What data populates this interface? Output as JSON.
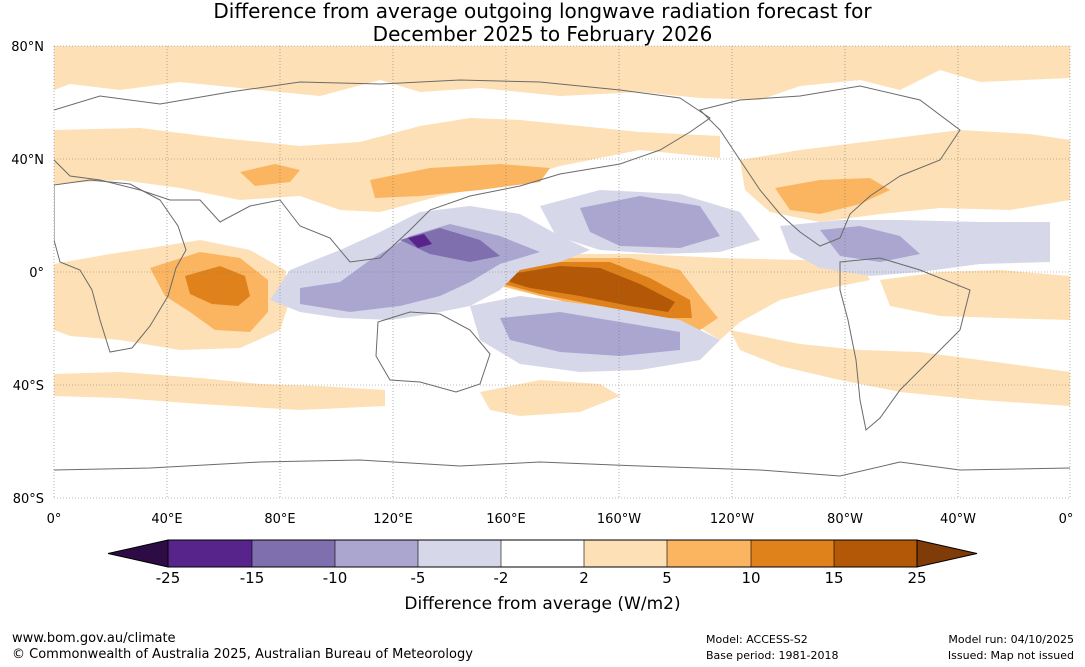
{
  "title": {
    "line1": "Difference from average outgoing longwave radiation forecast for",
    "line2": "December 2025 to February 2026"
  },
  "map": {
    "lat_ticks": [
      "80°N",
      "40°N",
      "0°",
      "40°S",
      "80°S"
    ],
    "lon_ticks": [
      "0°",
      "40°E",
      "80°E",
      "120°E",
      "160°E",
      "160°W",
      "120°W",
      "80°W",
      "40°W",
      "0°"
    ]
  },
  "colorbar": {
    "label": "Difference from average (W/m2)",
    "ticks": [
      "-25",
      "-15",
      "-10",
      "-5",
      "-2",
      "2",
      "5",
      "10",
      "15",
      "25"
    ],
    "colors": [
      "#2d0b45",
      "#57248c",
      "#7f6fae",
      "#aba6d0",
      "#d7d7ea",
      "#ffffff",
      "#fde0b5",
      "#fbb560",
      "#e0821b",
      "#b35807",
      "#7f3b08"
    ]
  },
  "footer": {
    "website": "www.bom.gov.au/climate",
    "copyright": "© Commonwealth of Australia 2025, Australian Bureau of Meteorology",
    "model": "Model: ACCESS-S2",
    "base_period": "Base period: 1981-2018",
    "model_run": "Model run: 04/10/2025",
    "issued": "Issued: Map not issued"
  }
}
